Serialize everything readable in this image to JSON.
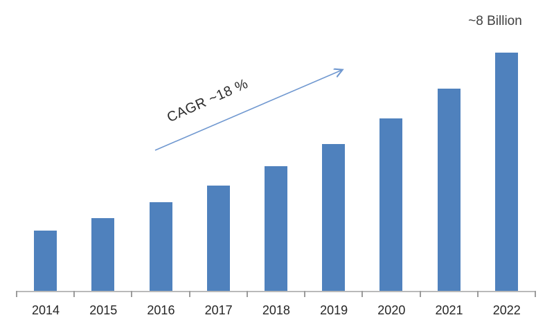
{
  "chart_data": {
    "type": "bar",
    "title": "",
    "xlabel": "",
    "ylabel": "",
    "unit": "Billion",
    "categories": [
      "2014",
      "2015",
      "2016",
      "2017",
      "2018",
      "2019",
      "2020",
      "2021",
      "2022"
    ],
    "values": [
      2.05,
      2.45,
      3.0,
      3.55,
      4.2,
      4.95,
      5.8,
      6.8,
      8.0
    ],
    "ylim": [
      0,
      8
    ],
    "grid": false,
    "legend": "none",
    "bar_color": "#4F81BD",
    "axis_color": "#b9b9b9",
    "tick_color": "#9b9b9b",
    "label_color": "#262626",
    "annotations": {
      "max_label": "~8 Billion",
      "cagr_label": "CAGR ~18 %",
      "arrow_color": "#7098d0"
    }
  }
}
